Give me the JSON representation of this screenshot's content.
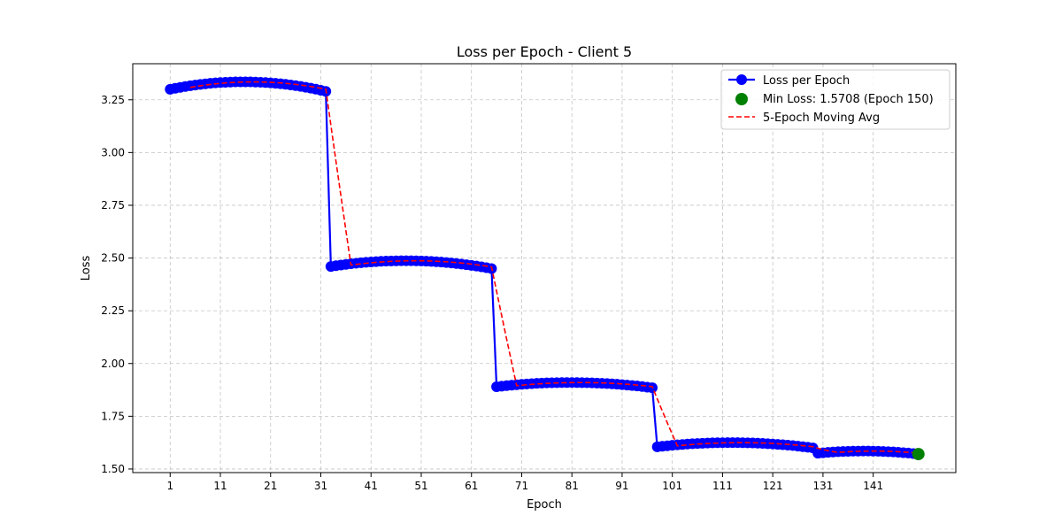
{
  "chart_data": {
    "type": "line",
    "title": "Loss per Epoch - Client 5",
    "xlabel": "Epoch",
    "ylabel": "Loss",
    "xlim": [
      -6.45,
      157.45
    ],
    "ylim": [
      1.483,
      3.421
    ],
    "xticks": [
      1,
      11,
      21,
      31,
      41,
      51,
      61,
      71,
      81,
      91,
      101,
      111,
      121,
      131,
      141
    ],
    "yticks": [
      1.5,
      1.75,
      2.0,
      2.25,
      2.5,
      2.75,
      3.0,
      3.25
    ],
    "ytick_labels": [
      "1.50",
      "1.75",
      "2.00",
      "2.25",
      "2.50",
      "2.75",
      "3.00",
      "3.25"
    ],
    "grid": true,
    "legend_position": "top-right",
    "segments": [
      {
        "start": 1,
        "end": 32,
        "y_start": 3.3,
        "y_peak": 3.335,
        "y_end": 3.29
      },
      {
        "start": 33,
        "end": 65,
        "y_start": 2.46,
        "y_peak": 2.487,
        "y_end": 2.45
      },
      {
        "start": 66,
        "end": 97,
        "y_start": 1.89,
        "y_peak": 1.91,
        "y_end": 1.885
      },
      {
        "start": 98,
        "end": 129,
        "y_start": 1.605,
        "y_peak": 1.625,
        "y_end": 1.6
      },
      {
        "start": 130,
        "end": 150,
        "y_start": 1.575,
        "y_peak": 1.585,
        "y_end": 1.5708
      }
    ],
    "min_point": {
      "epoch": 150,
      "loss": 1.5708
    },
    "moving_avg_window": 5,
    "series": [
      {
        "name": "Loss per Epoch",
        "color": "#0000ff",
        "style": "solid-markers"
      },
      {
        "name": "Min Loss: 1.5708 (Epoch 150)",
        "color": "#008000",
        "style": "point"
      },
      {
        "name": "5-Epoch Moving Avg",
        "color": "#ff0000",
        "style": "dashed"
      }
    ]
  }
}
